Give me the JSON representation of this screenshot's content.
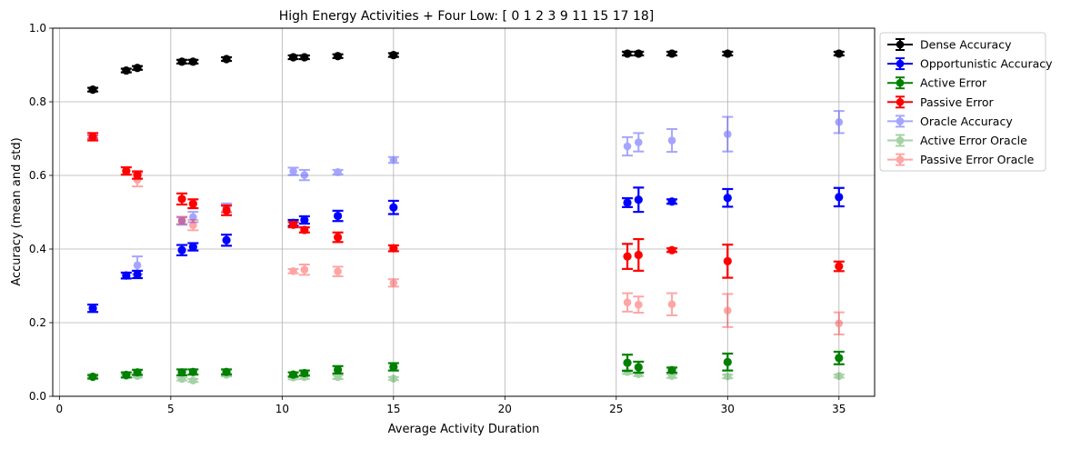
{
  "chart_data": {
    "type": "scatter",
    "title": "High Energy Activities + Four Low: [ 0  1  2  3  9 11 15 17 18]",
    "xlabel": "Average Activity Duration",
    "ylabel": "Accuracy (mean and std)",
    "xlim": [
      -0.3,
      36.6
    ],
    "ylim": [
      0.0,
      1.0
    ],
    "x_ticks": [
      0,
      5,
      10,
      15,
      20,
      25,
      30,
      35
    ],
    "x_tick_labels": [
      "0",
      "5",
      "10",
      "15",
      "20",
      "25",
      "30",
      "35"
    ],
    "y_ticks": [
      0.0,
      0.2,
      0.4,
      0.6,
      0.8,
      1.0
    ],
    "y_tick_labels": [
      "0.0",
      "0.2",
      "0.4",
      "0.6",
      "0.8",
      "1.0"
    ],
    "grid": true,
    "legend_position": "outside-right-top",
    "series": [
      {
        "name": "Dense Accuracy",
        "color": "#000000",
        "alpha": 1.0,
        "points": [
          {
            "x": 1.5,
            "y": 0.833,
            "err": 0.005
          },
          {
            "x": 3.0,
            "y": 0.885,
            "err": 0.005
          },
          {
            "x": 3.5,
            "y": 0.892,
            "err": 0.005
          },
          {
            "x": 5.5,
            "y": 0.909,
            "err": 0.005
          },
          {
            "x": 6.0,
            "y": 0.909,
            "err": 0.005
          },
          {
            "x": 7.5,
            "y": 0.916,
            "err": 0.005
          },
          {
            "x": 10.5,
            "y": 0.921,
            "err": 0.005
          },
          {
            "x": 11.0,
            "y": 0.921,
            "err": 0.005
          },
          {
            "x": 12.5,
            "y": 0.924,
            "err": 0.005
          },
          {
            "x": 15.0,
            "y": 0.927,
            "err": 0.005
          },
          {
            "x": 25.5,
            "y": 0.931,
            "err": 0.005
          },
          {
            "x": 26.0,
            "y": 0.931,
            "err": 0.005
          },
          {
            "x": 27.5,
            "y": 0.931,
            "err": 0.005
          },
          {
            "x": 30.0,
            "y": 0.931,
            "err": 0.005
          },
          {
            "x": 35.0,
            "y": 0.931,
            "err": 0.005
          }
        ]
      },
      {
        "name": "Opportunistic Accuracy",
        "color": "#0000ff",
        "alpha": 1.0,
        "points": [
          {
            "x": 1.5,
            "y": 0.239,
            "err": 0.01
          },
          {
            "x": 3.0,
            "y": 0.328,
            "err": 0.008
          },
          {
            "x": 3.5,
            "y": 0.331,
            "err": 0.01
          },
          {
            "x": 5.5,
            "y": 0.397,
            "err": 0.014
          },
          {
            "x": 6.0,
            "y": 0.406,
            "err": 0.01
          },
          {
            "x": 7.5,
            "y": 0.424,
            "err": 0.015
          },
          {
            "x": 10.5,
            "y": 0.471,
            "err": 0.008
          },
          {
            "x": 11.0,
            "y": 0.479,
            "err": 0.01
          },
          {
            "x": 12.5,
            "y": 0.49,
            "err": 0.014
          },
          {
            "x": 15.0,
            "y": 0.513,
            "err": 0.018
          },
          {
            "x": 25.5,
            "y": 0.526,
            "err": 0.012
          },
          {
            "x": 26.0,
            "y": 0.534,
            "err": 0.033
          },
          {
            "x": 27.5,
            "y": 0.529,
            "err": 0.006
          },
          {
            "x": 30.0,
            "y": 0.539,
            "err": 0.024
          },
          {
            "x": 35.0,
            "y": 0.541,
            "err": 0.025
          }
        ]
      },
      {
        "name": "Active Error",
        "color": "#008000",
        "alpha": 1.0,
        "points": [
          {
            "x": 1.5,
            "y": 0.053,
            "err": 0.005
          },
          {
            "x": 3.0,
            "y": 0.058,
            "err": 0.007
          },
          {
            "x": 3.5,
            "y": 0.065,
            "err": 0.007
          },
          {
            "x": 5.5,
            "y": 0.065,
            "err": 0.008
          },
          {
            "x": 6.0,
            "y": 0.066,
            "err": 0.007
          },
          {
            "x": 7.5,
            "y": 0.066,
            "err": 0.007
          },
          {
            "x": 10.5,
            "y": 0.059,
            "err": 0.006
          },
          {
            "x": 11.0,
            "y": 0.063,
            "err": 0.007
          },
          {
            "x": 12.5,
            "y": 0.072,
            "err": 0.01
          },
          {
            "x": 15.0,
            "y": 0.08,
            "err": 0.01
          },
          {
            "x": 25.5,
            "y": 0.091,
            "err": 0.022
          },
          {
            "x": 26.0,
            "y": 0.079,
            "err": 0.015
          },
          {
            "x": 27.5,
            "y": 0.071,
            "err": 0.007
          },
          {
            "x": 30.0,
            "y": 0.093,
            "err": 0.023
          },
          {
            "x": 35.0,
            "y": 0.104,
            "err": 0.017
          }
        ]
      },
      {
        "name": "Passive Error",
        "color": "#ff0000",
        "alpha": 1.0,
        "points": [
          {
            "x": 1.5,
            "y": 0.705,
            "err": 0.01
          },
          {
            "x": 3.0,
            "y": 0.612,
            "err": 0.01
          },
          {
            "x": 3.5,
            "y": 0.601,
            "err": 0.01
          },
          {
            "x": 5.5,
            "y": 0.536,
            "err": 0.015
          },
          {
            "x": 6.0,
            "y": 0.523,
            "err": 0.012
          },
          {
            "x": 7.5,
            "y": 0.505,
            "err": 0.013
          },
          {
            "x": 10.5,
            "y": 0.466,
            "err": 0.007
          },
          {
            "x": 11.0,
            "y": 0.452,
            "err": 0.007
          },
          {
            "x": 12.5,
            "y": 0.432,
            "err": 0.013
          },
          {
            "x": 15.0,
            "y": 0.402,
            "err": 0.008
          },
          {
            "x": 25.5,
            "y": 0.38,
            "err": 0.034
          },
          {
            "x": 26.0,
            "y": 0.384,
            "err": 0.043
          },
          {
            "x": 27.5,
            "y": 0.397,
            "err": 0.005
          },
          {
            "x": 30.0,
            "y": 0.367,
            "err": 0.045
          },
          {
            "x": 35.0,
            "y": 0.353,
            "err": 0.013
          }
        ]
      },
      {
        "name": "Oracle Accuracy",
        "color": "#0000ff",
        "alpha": 0.35,
        "points": [
          {
            "x": 1.5,
            "y": 0.705,
            "err": 0.004
          },
          {
            "x": 3.5,
            "y": 0.356,
            "err": 0.024
          },
          {
            "x": 5.5,
            "y": 0.476,
            "err": 0.01
          },
          {
            "x": 6.0,
            "y": 0.487,
            "err": 0.014
          },
          {
            "x": 7.5,
            "y": 0.512,
            "err": 0.012
          },
          {
            "x": 10.5,
            "y": 0.611,
            "err": 0.01
          },
          {
            "x": 11.0,
            "y": 0.601,
            "err": 0.014
          },
          {
            "x": 12.5,
            "y": 0.609,
            "err": 0.006
          },
          {
            "x": 15.0,
            "y": 0.642,
            "err": 0.008
          },
          {
            "x": 25.5,
            "y": 0.679,
            "err": 0.025
          },
          {
            "x": 26.0,
            "y": 0.69,
            "err": 0.025
          },
          {
            "x": 27.5,
            "y": 0.695,
            "err": 0.031
          },
          {
            "x": 30.0,
            "y": 0.712,
            "err": 0.047
          },
          {
            "x": 35.0,
            "y": 0.745,
            "err": 0.03
          }
        ]
      },
      {
        "name": "Active Error Oracle",
        "color": "#008000",
        "alpha": 0.35,
        "points": [
          {
            "x": 1.5,
            "y": 0.052,
            "err": 0.003
          },
          {
            "x": 3.0,
            "y": 0.055,
            "err": 0.004
          },
          {
            "x": 3.5,
            "y": 0.055,
            "err": 0.004
          },
          {
            "x": 5.5,
            "y": 0.047,
            "err": 0.004
          },
          {
            "x": 6.0,
            "y": 0.043,
            "err": 0.004
          },
          {
            "x": 7.5,
            "y": 0.058,
            "err": 0.004
          },
          {
            "x": 10.5,
            "y": 0.051,
            "err": 0.005
          },
          {
            "x": 11.0,
            "y": 0.052,
            "err": 0.005
          },
          {
            "x": 12.5,
            "y": 0.052,
            "err": 0.005
          },
          {
            "x": 15.0,
            "y": 0.048,
            "err": 0.004
          },
          {
            "x": 25.5,
            "y": 0.066,
            "err": 0.005
          },
          {
            "x": 26.0,
            "y": 0.06,
            "err": 0.005
          },
          {
            "x": 27.5,
            "y": 0.055,
            "err": 0.005
          },
          {
            "x": 30.0,
            "y": 0.054,
            "err": 0.005
          },
          {
            "x": 35.0,
            "y": 0.055,
            "err": 0.004
          }
        ]
      },
      {
        "name": "Passive Error Oracle",
        "color": "#ff0000",
        "alpha": 0.35,
        "points": [
          {
            "x": 1.5,
            "y": 0.704,
            "err": 0.004
          },
          {
            "x": 3.5,
            "y": 0.588,
            "err": 0.018
          },
          {
            "x": 5.5,
            "y": 0.478,
            "err": 0.01
          },
          {
            "x": 6.0,
            "y": 0.465,
            "err": 0.014
          },
          {
            "x": 7.5,
            "y": 0.51,
            "err": 0.01
          },
          {
            "x": 10.5,
            "y": 0.34,
            "err": 0.006
          },
          {
            "x": 11.0,
            "y": 0.344,
            "err": 0.014
          },
          {
            "x": 12.5,
            "y": 0.339,
            "err": 0.013
          },
          {
            "x": 15.0,
            "y": 0.308,
            "err": 0.01
          },
          {
            "x": 25.5,
            "y": 0.255,
            "err": 0.025
          },
          {
            "x": 26.0,
            "y": 0.249,
            "err": 0.022
          },
          {
            "x": 27.5,
            "y": 0.25,
            "err": 0.03
          },
          {
            "x": 30.0,
            "y": 0.233,
            "err": 0.045
          },
          {
            "x": 35.0,
            "y": 0.198,
            "err": 0.03
          }
        ]
      }
    ]
  }
}
